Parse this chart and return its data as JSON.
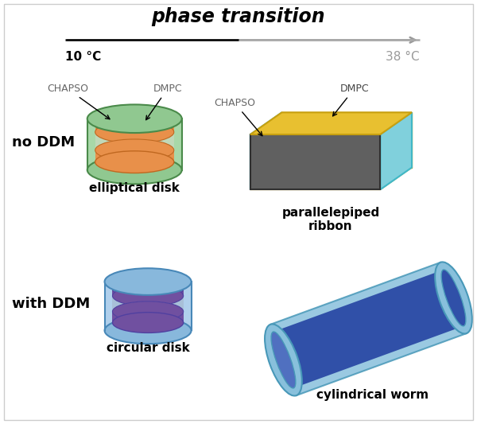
{
  "title": "phase transition",
  "arrow_left_label": "10 °C",
  "arrow_right_label": "38 °C",
  "no_ddm_label": "no DDM",
  "with_ddm_label": "with DDM",
  "elliptical_disk_label": "elliptical disk",
  "parallelepiped_label": "parallelepiped\nribbon",
  "circular_disk_label": "circular disk",
  "cylindrical_worm_label": "cylindrical worm",
  "chapso_label": "CHAPSO",
  "dmpc_label": "DMPC",
  "colors": {
    "green_outer_fill": "#90C890",
    "green_outer_edge": "#4A8A4A",
    "green_side_fill": "#A8D8A8",
    "orange_top": "#D4A878",
    "orange_top_edge": "#C08040",
    "orange_disk": "#E8904A",
    "orange_disk_edge": "#C06820",
    "gap_fill": "#C0D8B8",
    "yellow_gold": "#E8C030",
    "yellow_gold_dark": "#C8A010",
    "yellow_gold_side": "#D4B020",
    "cyan_face": "#40B8C8",
    "cyan_face_light": "#80D0DC",
    "dark_gray": "#606060",
    "dark_gray_edge": "#303030",
    "blue_outer_fill": "#88B8DC",
    "blue_outer_edge": "#4888B8",
    "blue_outer_light": "#B0D0EC",
    "purple_top": "#9070B8",
    "purple_disk": "#7050A0",
    "purple_edge": "#4030708",
    "gap_blue": "#A8C0D8",
    "navy_body": "#3050A8",
    "navy_light": "#5070C0",
    "navy_edge": "#1830808",
    "worm_shell": "#88C0DC",
    "worm_shell_edge": "#4898B8"
  }
}
